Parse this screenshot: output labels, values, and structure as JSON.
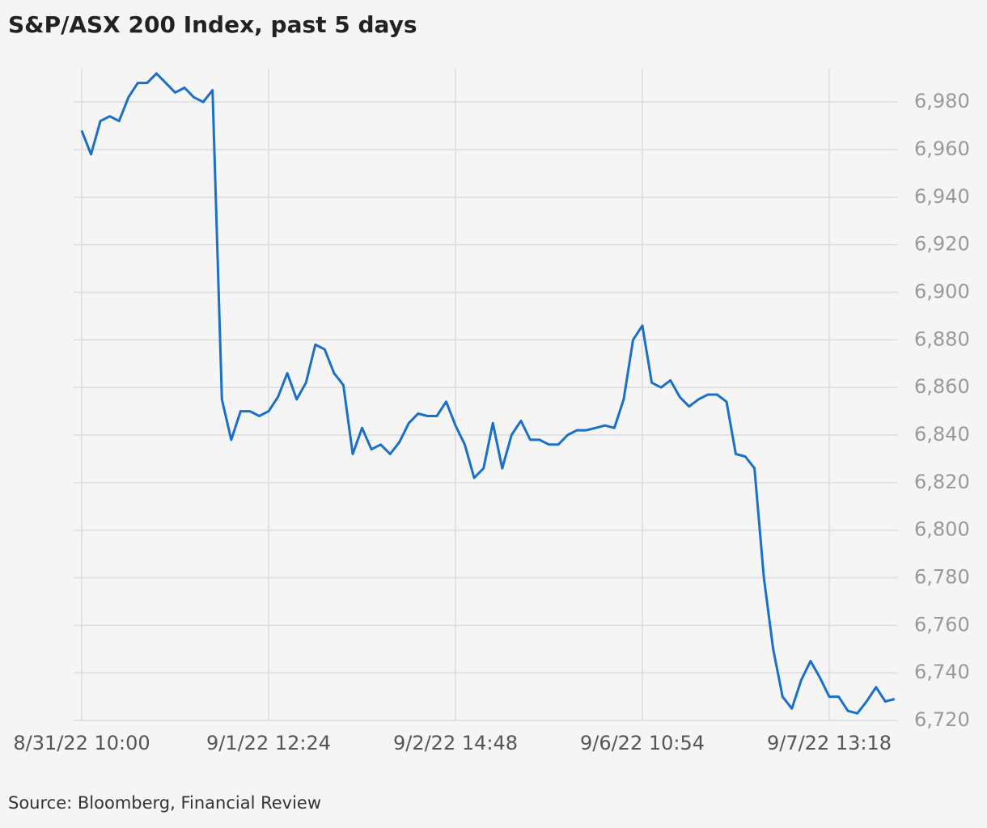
{
  "chart_data": {
    "type": "line",
    "title": "S&P/ASX 200 Index, past 5 days",
    "source": "Source: Bloomberg, Financial Review",
    "categories": [
      "8/31/22 10:00",
      null,
      null,
      null,
      null,
      null,
      null,
      null,
      null,
      null,
      null,
      null,
      null,
      null,
      null,
      null,
      null,
      null,
      null,
      null,
      "9/1/22 12:24",
      null,
      null,
      null,
      null,
      null,
      null,
      null,
      null,
      null,
      null,
      null,
      null,
      null,
      null,
      null,
      null,
      null,
      null,
      null,
      "9/2/22 14:48",
      null,
      null,
      null,
      null,
      null,
      null,
      null,
      null,
      null,
      null,
      null,
      null,
      null,
      null,
      null,
      null,
      null,
      null,
      null,
      "9/6/22 10:54",
      null,
      null,
      null,
      null,
      null,
      null,
      null,
      null,
      null,
      null,
      null,
      null,
      null,
      null,
      null,
      null,
      null,
      null,
      null,
      "9/7/22 13:18",
      null,
      null,
      null,
      null,
      null,
      null,
      null
    ],
    "values": [
      6968,
      6958,
      6972,
      6974,
      6972,
      6982,
      6988,
      6988,
      6992,
      6988,
      6984,
      6986,
      6982,
      6980,
      6985,
      6855,
      6838,
      6850,
      6850,
      6848,
      6850,
      6856,
      6866,
      6855,
      6862,
      6878,
      6876,
      6866,
      6861,
      6832,
      6843,
      6834,
      6836,
      6832,
      6837,
      6845,
      6849,
      6848,
      6848,
      6854,
      6844,
      6836,
      6822,
      6826,
      6845,
      6826,
      6840,
      6846,
      6838,
      6838,
      6836,
      6836,
      6840,
      6842,
      6842,
      6843,
      6844,
      6843,
      6855,
      6880,
      6886,
      6862,
      6860,
      6863,
      6856,
      6852,
      6855,
      6857,
      6857,
      6854,
      6832,
      6831,
      6826,
      6780,
      6750,
      6730,
      6725,
      6737,
      6745,
      6738,
      6730,
      6730,
      6724,
      6723,
      6728,
      6734,
      6728,
      6729
    ],
    "color": "#1a6fc9",
    "ylim": [
      6720,
      6994
    ],
    "yticks": [
      {
        "value": 6720,
        "label": "6,720"
      },
      {
        "value": 6740,
        "label": "6,740"
      },
      {
        "value": 6760,
        "label": "6,760"
      },
      {
        "value": 6780,
        "label": "6,780"
      },
      {
        "value": 6800,
        "label": "6,800"
      },
      {
        "value": 6820,
        "label": "6,820"
      },
      {
        "value": 6840,
        "label": "6,840"
      },
      {
        "value": 6860,
        "label": "6,860"
      },
      {
        "value": 6880,
        "label": "6,880"
      },
      {
        "value": 6900,
        "label": "6,900"
      },
      {
        "value": 6920,
        "label": "6,920"
      },
      {
        "value": 6940,
        "label": "6,940"
      },
      {
        "value": 6960,
        "label": "6,960"
      },
      {
        "value": 6980,
        "label": "6,980"
      }
    ],
    "grid": true
  }
}
